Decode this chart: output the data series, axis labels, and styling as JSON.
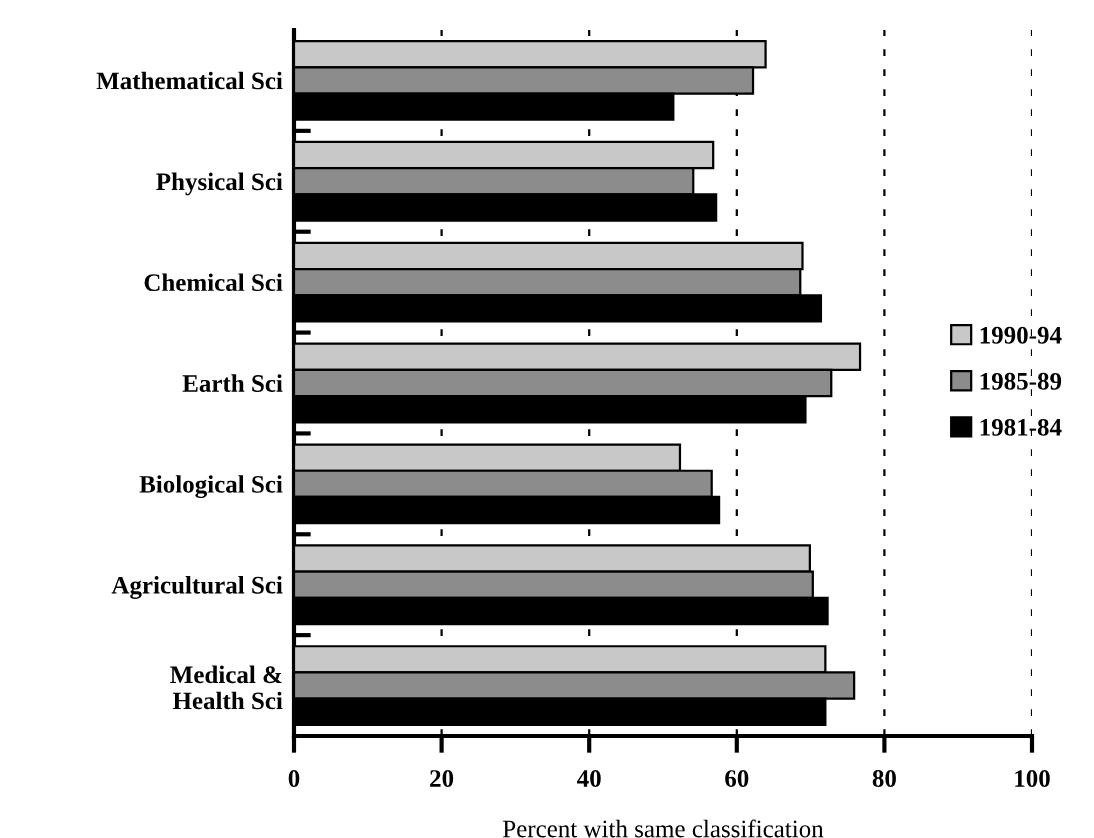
{
  "chart_data": {
    "type": "bar",
    "orientation": "horizontal",
    "xlabel": "Percent with same classification",
    "categories": [
      "Mathematical Sci",
      "Physical Sci",
      "Chemical Sci",
      "Earth Sci",
      "Biological Sci",
      "Agricultural Sci",
      "Medical &\nHealth Sci"
    ],
    "series": [
      {
        "name": "1990-94",
        "color": "#c8c8c8",
        "values": [
          63.9,
          56.8,
          68.9,
          76.7,
          52.3,
          69.9,
          72.0
        ]
      },
      {
        "name": "1985-89",
        "color": "#8c8c8c",
        "values": [
          62.2,
          54.1,
          68.6,
          72.8,
          56.6,
          70.3,
          75.9
        ]
      },
      {
        "name": "1981-84",
        "color": "#000000",
        "values": [
          51.4,
          57.2,
          71.4,
          69.3,
          57.6,
          72.3,
          72.0
        ]
      }
    ],
    "xlim": [
      0,
      100
    ],
    "xticks": [
      0,
      20,
      40,
      60,
      80,
      100
    ],
    "grid": "x",
    "legend": "right"
  }
}
